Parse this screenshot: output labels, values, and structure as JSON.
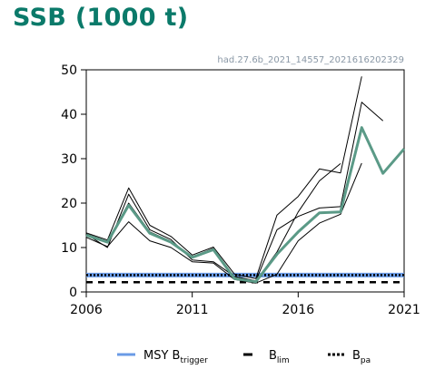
{
  "page": {
    "title": "SSB (1000 t)",
    "subtitle": "had.27.6b_2021_14557_2021616202329"
  },
  "chart_data": {
    "type": "line",
    "title": "SSB (1000 t)",
    "xlim": [
      2006,
      2021
    ],
    "ylim": [
      0,
      50
    ],
    "xticks": [
      2006,
      2011,
      2016,
      2021
    ],
    "yticks": [
      0,
      10,
      20,
      30,
      40,
      50
    ],
    "grid": false,
    "colors": {
      "ssb": "#5b9a87",
      "bounds": "#000000",
      "msy_btrigger": "#6a9be6",
      "blim": "#000000",
      "bpa": "#000000"
    },
    "series": [
      {
        "role": "estimate",
        "x": [
          2006,
          2007,
          2008,
          2009,
          2010,
          2011,
          2012,
          2013,
          2014,
          2015,
          2016,
          2017,
          2018,
          2019,
          2020,
          2021
        ],
        "values": [
          12.8,
          11.2,
          19.5,
          13.2,
          11.2,
          7.8,
          9.5,
          3.0,
          2.3,
          8.5,
          13.5,
          17.8,
          18.0,
          37.0,
          26.7,
          32.2
        ]
      },
      {
        "role": "upper",
        "x": [
          2006,
          2007,
          2008,
          2009,
          2010,
          2011,
          2012,
          2013,
          2014,
          2015,
          2016,
          2017,
          2018,
          2019
        ],
        "values": [
          13.3,
          11.7,
          23.4,
          15.0,
          12.5,
          8.3,
          10.1,
          4.0,
          3.0,
          17.3,
          21.5,
          27.7,
          26.8,
          48.5
        ]
      },
      {
        "role": "lower",
        "x": [
          2006,
          2007,
          2008,
          2009,
          2010,
          2011,
          2012,
          2013,
          2014,
          2015,
          2016,
          2017,
          2018,
          2019
        ],
        "values": [
          12.3,
          10.2,
          15.8,
          11.5,
          10.0,
          6.8,
          6.5,
          2.8,
          2.0,
          4.0,
          11.5,
          15.5,
          17.5,
          29.0
        ]
      },
      {
        "role": "retro1",
        "x": [
          2006,
          2007,
          2008,
          2009,
          2010,
          2011,
          2012,
          2013,
          2014,
          2015,
          2016,
          2017,
          2018,
          2019,
          2020
        ],
        "values": [
          13.0,
          10.0,
          22.0,
          14.0,
          11.8,
          7.2,
          6.8,
          3.5,
          2.5,
          14.0,
          17.0,
          18.9,
          19.2,
          42.7,
          38.5
        ]
      },
      {
        "role": "retro2",
        "x": [
          2006,
          2007,
          2008,
          2009,
          2010,
          2011,
          2012,
          2013,
          2014,
          2015,
          2016,
          2017,
          2018
        ],
        "values": [
          13.1,
          11.4,
          20.0,
          13.5,
          11.4,
          7.9,
          9.8,
          3.2,
          2.4,
          9.0,
          18.0,
          25.0,
          28.9
        ]
      }
    ],
    "reference_lines": {
      "msy_btrigger": 3.8,
      "blim": 2.2,
      "bpa": 3.8
    },
    "legend": {
      "placement": "bottom",
      "items": [
        {
          "key": "msy_btrigger",
          "label": "MSY B",
          "sub": "trigger"
        },
        {
          "key": "blim",
          "label": "B",
          "sub": "lim"
        },
        {
          "key": "bpa",
          "label": "B",
          "sub": "pa"
        }
      ]
    }
  }
}
